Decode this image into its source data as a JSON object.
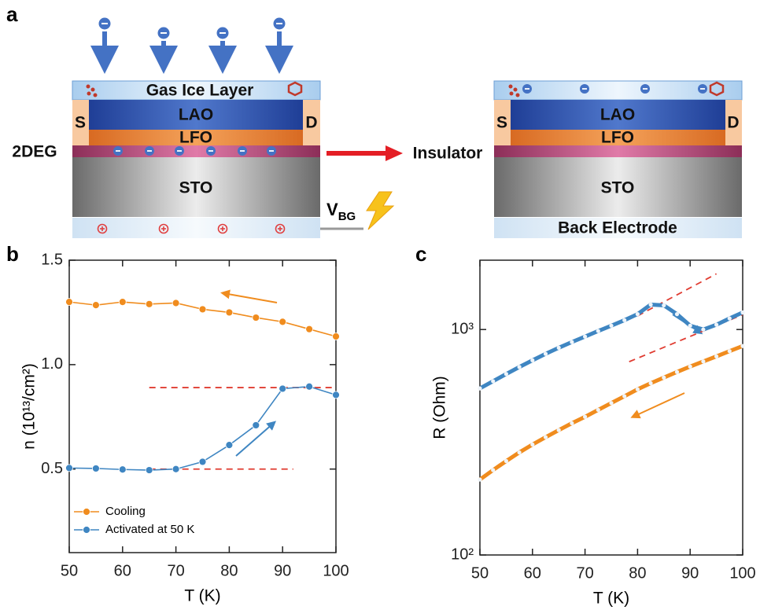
{
  "diagram": {
    "panel_label": "a",
    "left": {
      "top_layer": "Gas Ice Layer",
      "source": "S",
      "drain": "D",
      "lao": "LAO",
      "lfo": "LFO",
      "sto": "STO",
      "interface": "2DEG"
    },
    "transition": "Insulator",
    "gate": {
      "label": "V",
      "subscript": "BG"
    },
    "right": {
      "source": "S",
      "drain": "D",
      "lao": "LAO",
      "lfo": "LFO",
      "sto": "STO",
      "bottom_layer": "Back Electrode"
    }
  },
  "chart_data": [
    {
      "type": "line",
      "panel_label": "b",
      "xlabel": "T (K)",
      "ylabel": "n (10¹³/cm²)",
      "x": [
        50,
        55,
        60,
        65,
        70,
        75,
        80,
        85,
        90,
        95,
        100
      ],
      "series": [
        {
          "name": "Cooling",
          "color": "#f08c1e",
          "values": [
            1.3,
            1.285,
            1.3,
            1.29,
            1.295,
            1.265,
            1.25,
            1.225,
            1.205,
            1.17,
            1.135
          ]
        },
        {
          "name": "Activated at 50 K",
          "color": "#3f86c2",
          "values": [
            0.505,
            0.503,
            0.498,
            0.495,
            0.5,
            0.535,
            0.615,
            0.71,
            0.885,
            0.895,
            0.855
          ]
        }
      ],
      "reference_lines": [
        {
          "x": [
            65,
            100
          ],
          "y": [
            0.89,
            0.89
          ],
          "color": "#e03c31"
        },
        {
          "x": [
            65,
            92
          ],
          "y": [
            0.5,
            0.5
          ],
          "color": "#e03c31"
        }
      ],
      "xlim": [
        50,
        100
      ],
      "xticks": [
        50,
        60,
        70,
        80,
        90,
        100
      ],
      "ylim": [
        0.1,
        1.5
      ],
      "yticks": [
        0.5,
        {
          "value": 1,
          "label": "1.0"
        },
        1.5
      ],
      "legend": "lower left"
    },
    {
      "type": "line",
      "panel_label": "c",
      "xlabel": "T (K)",
      "ylabel": "R (Ohm)",
      "ylog": true,
      "x": [
        50,
        52.5,
        55,
        57.5,
        60,
        62.5,
        65,
        67.5,
        70,
        72.5,
        75,
        77.5,
        80,
        82.5,
        85,
        87.5,
        90,
        92.5,
        95,
        97.5,
        100
      ],
      "series": [
        {
          "color": "#3f86c2",
          "values": [
            548,
            590,
            635,
            682,
            730,
            780,
            830,
            880,
            930,
            985,
            1040,
            1100,
            1170,
            1290,
            1280,
            1170,
            1040,
            1000,
            1050,
            1120,
            1190
          ]
        },
        {
          "color": "#f08c1e",
          "values": [
            216,
            238,
            261,
            285,
            309,
            333,
            358,
            384,
            410,
            440,
            472,
            506,
            543,
            578,
            612,
            648,
            685,
            722,
            760,
            802,
            845
          ]
        }
      ],
      "reference_lines": [
        {
          "x": [
            80,
            95
          ],
          "y": [
            1150,
            1766
          ],
          "color": "#e03c31"
        },
        {
          "x": [
            78.4,
            100
          ],
          "y": [
            720,
            1164
          ],
          "color": "#e03c31"
        }
      ],
      "xlim": [
        50,
        100
      ],
      "xticks": [
        50,
        60,
        70,
        80,
        90,
        100
      ],
      "ylim": [
        100,
        2030
      ],
      "yticks": [
        {
          "value": 100,
          "label": "10²"
        },
        {
          "value": 1000,
          "label": "10³"
        }
      ]
    }
  ]
}
